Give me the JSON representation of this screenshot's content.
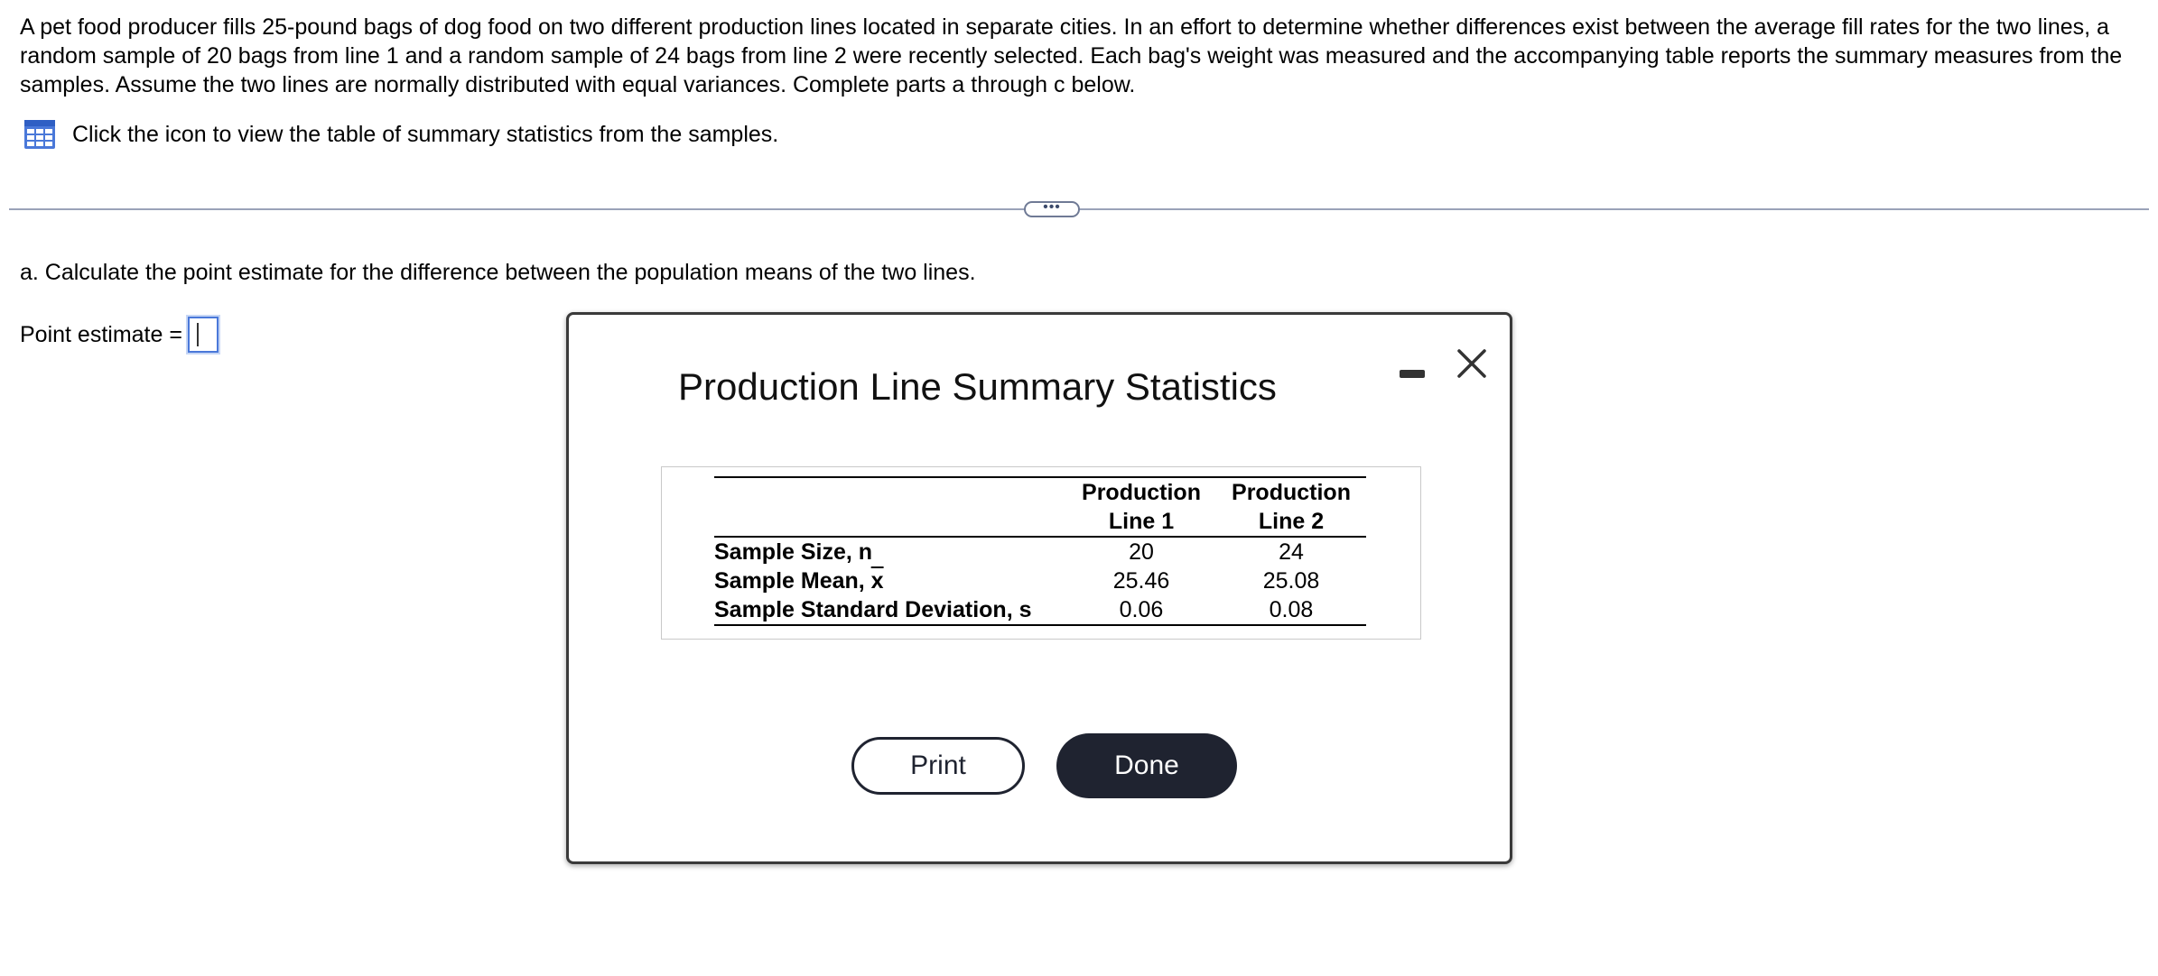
{
  "problem": {
    "text": "A pet food producer fills 25-pound bags of dog food on two different production lines located in separate cities. In an effort to determine whether differences exist between the average fill rates for the two lines, a random sample of 20 bags from line 1 and a random sample of 24 bags from line 2 were recently selected. Each bag's weight was measured and the accompanying table reports the summary measures from the samples. Assume the two lines are normally distributed with equal variances. Complete parts a through c below.",
    "icon_text": "Click the icon to view the table of summary statistics from the samples.",
    "more_label": "•••"
  },
  "part_a": {
    "question": "a. Calculate the point estimate for the difference between the population means of the two lines.",
    "point_estimate_label": "Point estimate =",
    "point_estimate_value": ""
  },
  "dialog": {
    "title": "Production Line Summary Statistics",
    "columns": [
      {
        "line1": "Production",
        "line2": "Line 1"
      },
      {
        "line1": "Production",
        "line2": "Line 2"
      }
    ],
    "rows": [
      {
        "label": "Sample Size, n",
        "v1": "20",
        "v2": "24"
      },
      {
        "label_prefix": "Sample Mean, ",
        "label_symbol": "x",
        "v1": "25.46",
        "v2": "25.08"
      },
      {
        "label": "Sample Standard Deviation, s",
        "v1": "0.06",
        "v2": "0.08"
      }
    ],
    "print_label": "Print",
    "done_label": "Done"
  },
  "colors": {
    "accent_blue": "#4a78d9",
    "dark_button": "#1f2330",
    "divider": "#9aa2b8"
  },
  "icons": {
    "table": "table-grid-icon",
    "minimize": "minimize-icon",
    "close": "close-icon"
  }
}
